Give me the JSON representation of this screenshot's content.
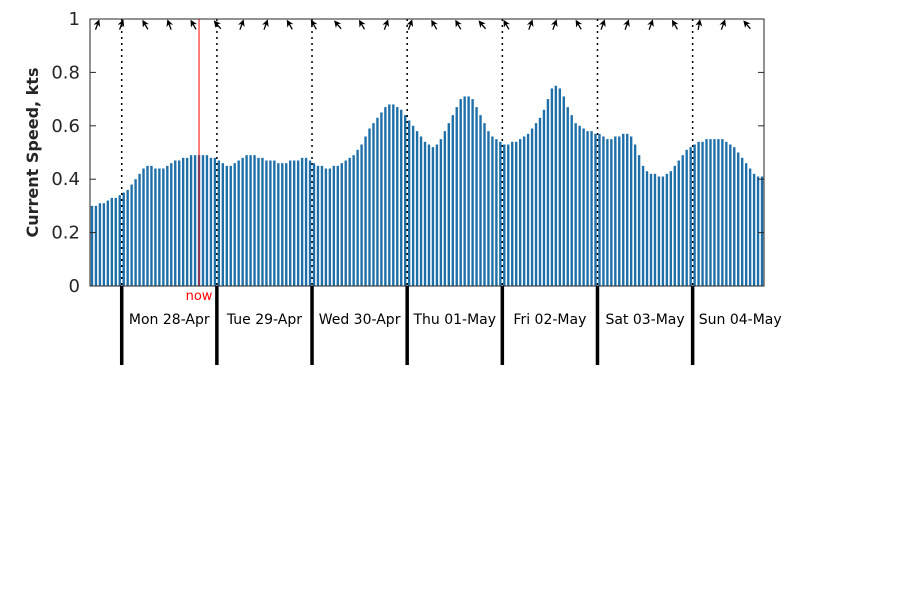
{
  "chart_data": {
    "type": "bar",
    "ylabel": "Current Speed, kts",
    "ylim": [
      0,
      1
    ],
    "yticks": [
      0,
      0.2,
      0.4,
      0.6,
      0.8,
      1
    ],
    "ytick_labels": [
      "0",
      "0.2",
      "0.4",
      "0.6",
      "0.8",
      "1"
    ],
    "grid": false,
    "hours_per_bar": 1,
    "bar_color": "#1f6fa8",
    "now_marker_color": "#ff0000",
    "now_label": "now",
    "now_hour": 27,
    "days": [
      {
        "label": "Mon 28-Apr",
        "start_hour": 8
      },
      {
        "label": "Tue 29-Apr",
        "start_hour": 32
      },
      {
        "label": "Wed 30-Apr",
        "start_hour": 56
      },
      {
        "label": "Thu 01-May",
        "start_hour": 80
      },
      {
        "label": "Fri 02-May",
        "start_hour": 104
      },
      {
        "label": "Sat 03-May",
        "start_hour": 128
      },
      {
        "label": "Sun 04-May",
        "start_hour": 152
      }
    ],
    "values": [
      0.3,
      0.3,
      0.31,
      0.31,
      0.32,
      0.33,
      0.33,
      0.34,
      0.35,
      0.36,
      0.38,
      0.4,
      0.42,
      0.44,
      0.45,
      0.45,
      0.44,
      0.44,
      0.44,
      0.45,
      0.46,
      0.47,
      0.47,
      0.48,
      0.48,
      0.49,
      0.49,
      0.49,
      0.49,
      0.49,
      0.48,
      0.48,
      0.47,
      0.46,
      0.45,
      0.45,
      0.46,
      0.47,
      0.48,
      0.49,
      0.49,
      0.49,
      0.48,
      0.48,
      0.47,
      0.47,
      0.47,
      0.46,
      0.46,
      0.46,
      0.47,
      0.47,
      0.47,
      0.48,
      0.48,
      0.47,
      0.46,
      0.45,
      0.45,
      0.44,
      0.44,
      0.45,
      0.45,
      0.46,
      0.47,
      0.48,
      0.49,
      0.51,
      0.53,
      0.56,
      0.59,
      0.61,
      0.63,
      0.65,
      0.67,
      0.68,
      0.68,
      0.67,
      0.66,
      0.64,
      0.62,
      0.6,
      0.58,
      0.56,
      0.54,
      0.53,
      0.52,
      0.53,
      0.55,
      0.58,
      0.61,
      0.64,
      0.67,
      0.7,
      0.71,
      0.71,
      0.7,
      0.67,
      0.64,
      0.61,
      0.58,
      0.56,
      0.55,
      0.54,
      0.53,
      0.53,
      0.54,
      0.54,
      0.55,
      0.56,
      0.57,
      0.59,
      0.61,
      0.63,
      0.66,
      0.7,
      0.74,
      0.75,
      0.74,
      0.71,
      0.67,
      0.64,
      0.61,
      0.6,
      0.59,
      0.58,
      0.58,
      0.57,
      0.57,
      0.56,
      0.55,
      0.55,
      0.56,
      0.56,
      0.57,
      0.57,
      0.56,
      0.53,
      0.49,
      0.45,
      0.43,
      0.42,
      0.42,
      0.41,
      0.41,
      0.42,
      0.43,
      0.45,
      0.47,
      0.49,
      0.51,
      0.52,
      0.53,
      0.54,
      0.54,
      0.55,
      0.55,
      0.55,
      0.55,
      0.55,
      0.54,
      0.53,
      0.52,
      0.5,
      0.48,
      0.46,
      0.44,
      0.42,
      0.41,
      0.41
    ],
    "direction_arrows": {
      "count": 28,
      "color": "#000000",
      "headings_deg": [
        20,
        20,
        330,
        340,
        330,
        320,
        20,
        20,
        330,
        330,
        320,
        330,
        20,
        20,
        330,
        330,
        320,
        330,
        20,
        20,
        330,
        20,
        20,
        20,
        330,
        10,
        20,
        320
      ]
    }
  }
}
